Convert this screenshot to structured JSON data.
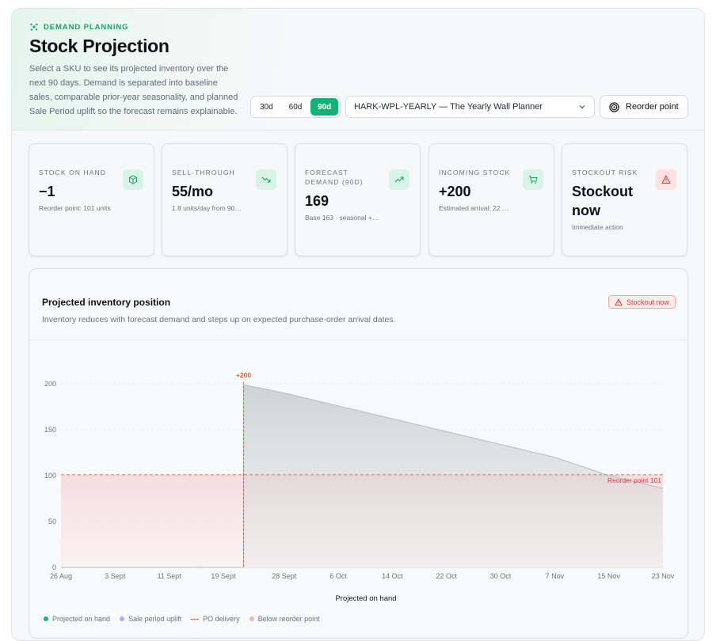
{
  "header": {
    "eyebrow": "DEMAND PLANNING",
    "title": "Stock Projection",
    "description": "Select a SKU to see its projected inventory over the next 90 days. Demand is separated into baseline sales, comparable prior-year seasonality, and planned Sale Period uplift so the forecast remains explainable."
  },
  "controls": {
    "ranges": [
      "30d",
      "60d",
      "90d"
    ],
    "active_range": "90d",
    "sku_selected": "HARK-WPL-YEARLY — The Yearly Wall Planner",
    "reorder_label": "Reorder point"
  },
  "cards": [
    {
      "label": "STOCK ON HAND",
      "value": "−1",
      "sub": "Reorder point: 101 units",
      "icon": "box-icon"
    },
    {
      "label": "SELL-THROUGH",
      "value": "55/mo",
      "sub": "1.8 units/day from 90…",
      "icon": "trend-down-icon"
    },
    {
      "label": "FORECAST DEMAND (90D)",
      "value": "169",
      "sub": "Base 163 · seasonal +…",
      "icon": "trend-up-icon"
    },
    {
      "label": "INCOMING STOCK",
      "value": "+200",
      "sub": "Estimated arrival: 22 …",
      "icon": "cart-icon"
    },
    {
      "label": "STOCKOUT RISK",
      "value": "Stockout now",
      "sub": "Immediate action",
      "icon": "alert-icon"
    }
  ],
  "chart": {
    "title": "Projected inventory position",
    "subtitle": "Inventory reduces with forecast demand and steps up on expected purchase-order arrival dates.",
    "badge": "Stockout now",
    "reorder_label": "Reorder point 101",
    "po_label": "+200",
    "legend": [
      "Projected on hand",
      "Sale period uplift",
      "PO delivery",
      "Below reorder point"
    ]
  },
  "colors": {
    "accent": "#14b277",
    "danger": "#d43b3b",
    "po": "#c96a2a",
    "uplift": "#b9a6f2"
  },
  "chart_data": {
    "type": "area",
    "xlabel": "Projected on hand",
    "ylim": [
      0,
      200
    ],
    "yticks": [
      0,
      50,
      100,
      150,
      200
    ],
    "x_ticks": [
      "26 Aug",
      "3 Sept",
      "11 Sept",
      "19 Sept",
      "28 Sept",
      "6 Oct",
      "14 Oct",
      "22 Oct",
      "30 Oct",
      "7 Nov",
      "15 Nov",
      "23 Nov"
    ],
    "series": [
      {
        "name": "Projected on hand",
        "points": [
          {
            "x": "26 Aug",
            "y": 0
          },
          {
            "x": "22 Sept",
            "y": 0
          },
          {
            "x": "22 Sept",
            "y": 199
          },
          {
            "x": "28 Sept",
            "y": 190
          },
          {
            "x": "6 Oct",
            "y": 176
          },
          {
            "x": "14 Oct",
            "y": 162
          },
          {
            "x": "22 Oct",
            "y": 148
          },
          {
            "x": "30 Oct",
            "y": 134
          },
          {
            "x": "7 Nov",
            "y": 120
          },
          {
            "x": "15 Nov",
            "y": 100
          },
          {
            "x": "23 Nov",
            "y": 86
          }
        ]
      }
    ],
    "reorder_point": 101,
    "po_delivery": {
      "x": "22 Sept",
      "amount": 200
    }
  }
}
